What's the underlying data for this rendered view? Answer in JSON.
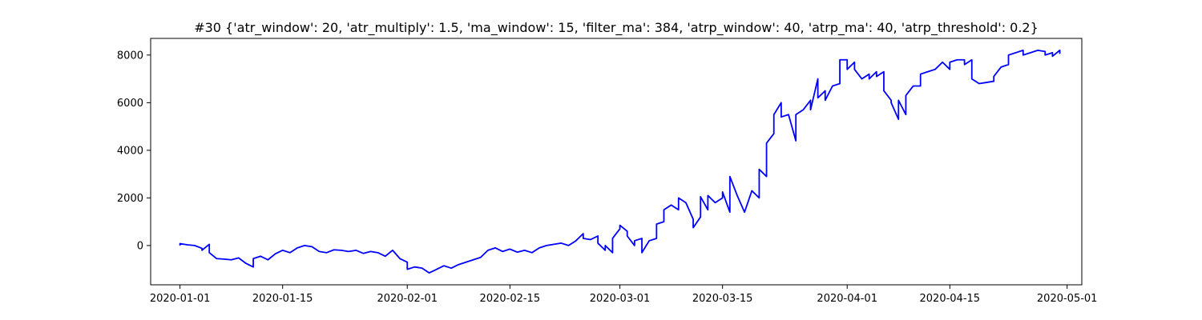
{
  "chart_data": {
    "type": "line",
    "title": "#30 {'atr_window': 20, 'atr_multiply': 1.5, 'ma_window': 15, 'filter_ma': 384, 'atrp_window': 40, 'atrp_ma': 40, 'atrp_threshold': 0.2}",
    "xlabel": "",
    "ylabel": "",
    "grid": false,
    "legend": "none",
    "xlim": [
      "2019-12-28",
      "2020-05-03"
    ],
    "ylim": [
      -1650,
      8700
    ],
    "x_ticks": [
      "2020-01-01",
      "2020-01-15",
      "2020-02-01",
      "2020-02-15",
      "2020-03-01",
      "2020-03-15",
      "2020-04-01",
      "2020-04-15",
      "2020-05-01"
    ],
    "y_ticks": [
      0,
      2000,
      4000,
      6000,
      8000
    ],
    "series": [
      {
        "color": "#0000ff",
        "points": [
          [
            "2020-01-01",
            0
          ],
          [
            "2020-01-01",
            80
          ],
          [
            "2020-01-02",
            30
          ],
          [
            "2020-01-03",
            0
          ],
          [
            "2020-01-04",
            -120
          ],
          [
            "2020-01-04",
            -200
          ],
          [
            "2020-01-05",
            50
          ],
          [
            "2020-01-05",
            -300
          ],
          [
            "2020-01-06",
            -550
          ],
          [
            "2020-01-07",
            -570
          ],
          [
            "2020-01-08",
            -600
          ],
          [
            "2020-01-09",
            -520
          ],
          [
            "2020-01-10",
            -750
          ],
          [
            "2020-01-11",
            -900
          ],
          [
            "2020-01-11",
            -550
          ],
          [
            "2020-01-12",
            -450
          ],
          [
            "2020-01-13",
            -600
          ],
          [
            "2020-01-14",
            -350
          ],
          [
            "2020-01-15",
            -200
          ],
          [
            "2020-01-16",
            -300
          ],
          [
            "2020-01-17",
            -100
          ],
          [
            "2020-01-18",
            0
          ],
          [
            "2020-01-19",
            -50
          ],
          [
            "2020-01-20",
            -250
          ],
          [
            "2020-01-21",
            -300
          ],
          [
            "2020-01-22",
            -180
          ],
          [
            "2020-01-23",
            -200
          ],
          [
            "2020-01-24",
            -250
          ],
          [
            "2020-01-25",
            -200
          ],
          [
            "2020-01-26",
            -330
          ],
          [
            "2020-01-27",
            -250
          ],
          [
            "2020-01-28",
            -300
          ],
          [
            "2020-01-29",
            -450
          ],
          [
            "2020-01-30",
            -200
          ],
          [
            "2020-01-31",
            -550
          ],
          [
            "2020-02-01",
            -700
          ],
          [
            "2020-02-01",
            -1000
          ],
          [
            "2020-02-02",
            -900
          ],
          [
            "2020-02-03",
            -950
          ],
          [
            "2020-02-04",
            -1150
          ],
          [
            "2020-02-05",
            -1000
          ],
          [
            "2020-02-06",
            -850
          ],
          [
            "2020-02-07",
            -950
          ],
          [
            "2020-02-08",
            -800
          ],
          [
            "2020-02-09",
            -700
          ],
          [
            "2020-02-10",
            -600
          ],
          [
            "2020-02-11",
            -500
          ],
          [
            "2020-02-12",
            -200
          ],
          [
            "2020-02-13",
            -100
          ],
          [
            "2020-02-14",
            -250
          ],
          [
            "2020-02-15",
            -150
          ],
          [
            "2020-02-16",
            -280
          ],
          [
            "2020-02-17",
            -200
          ],
          [
            "2020-02-18",
            -300
          ],
          [
            "2020-02-19",
            -100
          ],
          [
            "2020-02-20",
            0
          ],
          [
            "2020-02-21",
            50
          ],
          [
            "2020-02-22",
            100
          ],
          [
            "2020-02-23",
            0
          ],
          [
            "2020-02-24",
            200
          ],
          [
            "2020-02-25",
            500
          ],
          [
            "2020-02-25",
            300
          ],
          [
            "2020-02-26",
            250
          ],
          [
            "2020-02-27",
            400
          ],
          [
            "2020-02-27",
            100
          ],
          [
            "2020-02-28",
            -200
          ],
          [
            "2020-02-28",
            0
          ],
          [
            "2020-02-29",
            -300
          ],
          [
            "2020-02-29",
            0
          ],
          [
            "2020-02-29",
            300
          ],
          [
            "2020-03-01",
            700
          ],
          [
            "2020-03-01",
            850
          ],
          [
            "2020-03-02",
            600
          ],
          [
            "2020-03-02",
            400
          ],
          [
            "2020-03-03",
            0
          ],
          [
            "2020-03-03",
            200
          ],
          [
            "2020-03-04",
            300
          ],
          [
            "2020-03-04",
            -300
          ],
          [
            "2020-03-05",
            200
          ],
          [
            "2020-03-06",
            300
          ],
          [
            "2020-03-06",
            900
          ],
          [
            "2020-03-07",
            1000
          ],
          [
            "2020-03-07",
            1500
          ],
          [
            "2020-03-08",
            1700
          ],
          [
            "2020-03-09",
            1500
          ],
          [
            "2020-03-09",
            2000
          ],
          [
            "2020-03-10",
            1800
          ],
          [
            "2020-03-11",
            1100
          ],
          [
            "2020-03-11",
            750
          ],
          [
            "2020-03-12",
            1200
          ],
          [
            "2020-03-12",
            2050
          ],
          [
            "2020-03-13",
            1500
          ],
          [
            "2020-03-13",
            2100
          ],
          [
            "2020-03-14",
            1800
          ],
          [
            "2020-03-15",
            2000
          ],
          [
            "2020-03-15",
            2250
          ],
          [
            "2020-03-16",
            1400
          ],
          [
            "2020-03-16",
            2900
          ],
          [
            "2020-03-17",
            2100
          ],
          [
            "2020-03-18",
            1400
          ],
          [
            "2020-03-19",
            2300
          ],
          [
            "2020-03-20",
            2000
          ],
          [
            "2020-03-20",
            3200
          ],
          [
            "2020-03-21",
            2900
          ],
          [
            "2020-03-21",
            4300
          ],
          [
            "2020-03-22",
            4700
          ],
          [
            "2020-03-22",
            5500
          ],
          [
            "2020-03-23",
            6000
          ],
          [
            "2020-03-23",
            5400
          ],
          [
            "2020-03-24",
            5500
          ],
          [
            "2020-03-25",
            4400
          ],
          [
            "2020-03-25",
            5500
          ],
          [
            "2020-03-26",
            5700
          ],
          [
            "2020-03-27",
            6100
          ],
          [
            "2020-03-27",
            5700
          ],
          [
            "2020-03-28",
            7000
          ],
          [
            "2020-03-28",
            6200
          ],
          [
            "2020-03-29",
            6500
          ],
          [
            "2020-03-29",
            6100
          ],
          [
            "2020-03-30",
            6700
          ],
          [
            "2020-03-31",
            6800
          ],
          [
            "2020-03-31",
            7800
          ],
          [
            "2020-04-01",
            7800
          ],
          [
            "2020-04-01",
            7400
          ],
          [
            "2020-04-02",
            7700
          ],
          [
            "2020-04-02",
            7400
          ],
          [
            "2020-04-03",
            7000
          ],
          [
            "2020-04-04",
            7200
          ],
          [
            "2020-04-04",
            7000
          ],
          [
            "2020-04-05",
            7300
          ],
          [
            "2020-04-05",
            7100
          ],
          [
            "2020-04-06",
            7300
          ],
          [
            "2020-04-06",
            6500
          ],
          [
            "2020-04-07",
            6100
          ],
          [
            "2020-04-07",
            6000
          ],
          [
            "2020-04-08",
            5300
          ],
          [
            "2020-04-08",
            6100
          ],
          [
            "2020-04-09",
            5500
          ],
          [
            "2020-04-09",
            6300
          ],
          [
            "2020-04-10",
            6700
          ],
          [
            "2020-04-11",
            6700
          ],
          [
            "2020-04-11",
            7200
          ],
          [
            "2020-04-12",
            7300
          ],
          [
            "2020-04-13",
            7400
          ],
          [
            "2020-04-14",
            7700
          ],
          [
            "2020-04-15",
            7400
          ],
          [
            "2020-04-15",
            7700
          ],
          [
            "2020-04-16",
            7800
          ],
          [
            "2020-04-17",
            7800
          ],
          [
            "2020-04-17",
            7600
          ],
          [
            "2020-04-18",
            7800
          ],
          [
            "2020-04-18",
            7000
          ],
          [
            "2020-04-19",
            6800
          ],
          [
            "2020-04-20",
            6850
          ],
          [
            "2020-04-21",
            6900
          ],
          [
            "2020-04-21",
            7100
          ],
          [
            "2020-04-22",
            7500
          ],
          [
            "2020-04-23",
            7600
          ],
          [
            "2020-04-23",
            8000
          ],
          [
            "2020-04-24",
            8100
          ],
          [
            "2020-04-25",
            8200
          ],
          [
            "2020-04-25",
            8000
          ],
          [
            "2020-04-26",
            8100
          ],
          [
            "2020-04-27",
            8200
          ],
          [
            "2020-04-28",
            8150
          ],
          [
            "2020-04-28",
            8000
          ],
          [
            "2020-04-29",
            8100
          ],
          [
            "2020-04-29",
            7950
          ],
          [
            "2020-04-30",
            8200
          ],
          [
            "2020-04-30",
            8050
          ]
        ]
      }
    ]
  }
}
